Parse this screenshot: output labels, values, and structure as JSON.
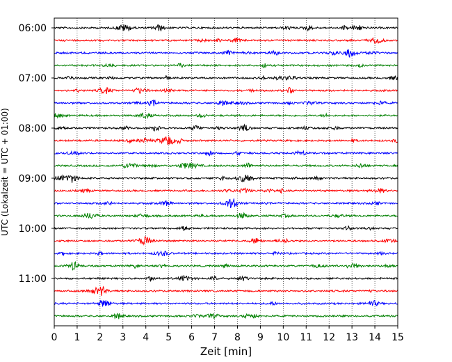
{
  "chart_data": {
    "type": "line",
    "title": "",
    "xlabel": "Zeit  [min]",
    "ylabel": "UTC (Lokalzeit = UTC + 01:00)",
    "xlim": [
      0,
      15
    ],
    "x_ticks": [
      "0",
      "1",
      "2",
      "3",
      "4",
      "5",
      "6",
      "7",
      "8",
      "9",
      "10",
      "11",
      "12",
      "13",
      "14",
      "15"
    ],
    "y_tick_labels": [
      "06:00",
      "07:00",
      "08:00",
      "09:00",
      "10:00",
      "11:00"
    ],
    "trace_start_times": [
      "06:00",
      "06:15",
      "06:30",
      "06:45",
      "07:00",
      "07:15",
      "07:30",
      "07:45",
      "08:00",
      "08:15",
      "08:30",
      "08:45",
      "09:00",
      "09:15",
      "09:30",
      "09:45",
      "10:00",
      "10:15",
      "10:30",
      "10:45",
      "11:00",
      "11:15",
      "11:30",
      "11:45"
    ],
    "trace_minutes_per_line": 15,
    "trace_colors": [
      "#000000",
      "#ff0000",
      "#0000ff",
      "#008000"
    ],
    "grid": {
      "vertical_dotted": true,
      "horizontal": false
    },
    "legend": "none"
  }
}
